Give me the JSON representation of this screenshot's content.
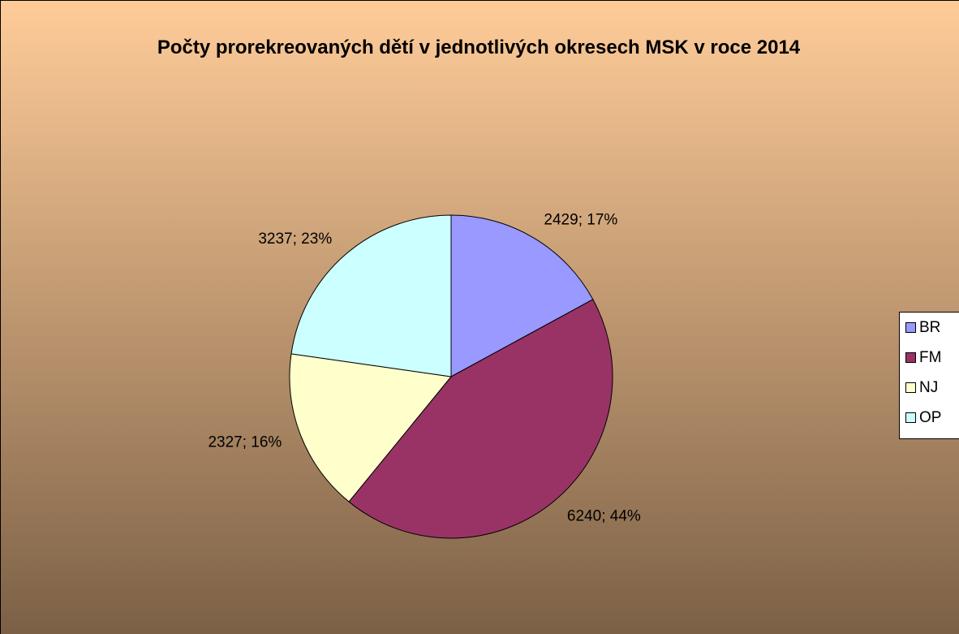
{
  "chart_data": {
    "type": "pie",
    "title": "Počty prorekreovaných dětí v jednotlivých okresech MSK v roce 2014",
    "categories": [
      "BR",
      "FM",
      "NJ",
      "OP"
    ],
    "values": [
      2429,
      6240,
      2327,
      3237
    ],
    "value_labels": [
      "2429; 17%",
      "6240; 44%",
      "2327; 16%",
      "3237; 23%"
    ],
    "colors": [
      "#9999ff",
      "#993366",
      "#ffffcc",
      "#ccffff"
    ],
    "legend": "right"
  }
}
